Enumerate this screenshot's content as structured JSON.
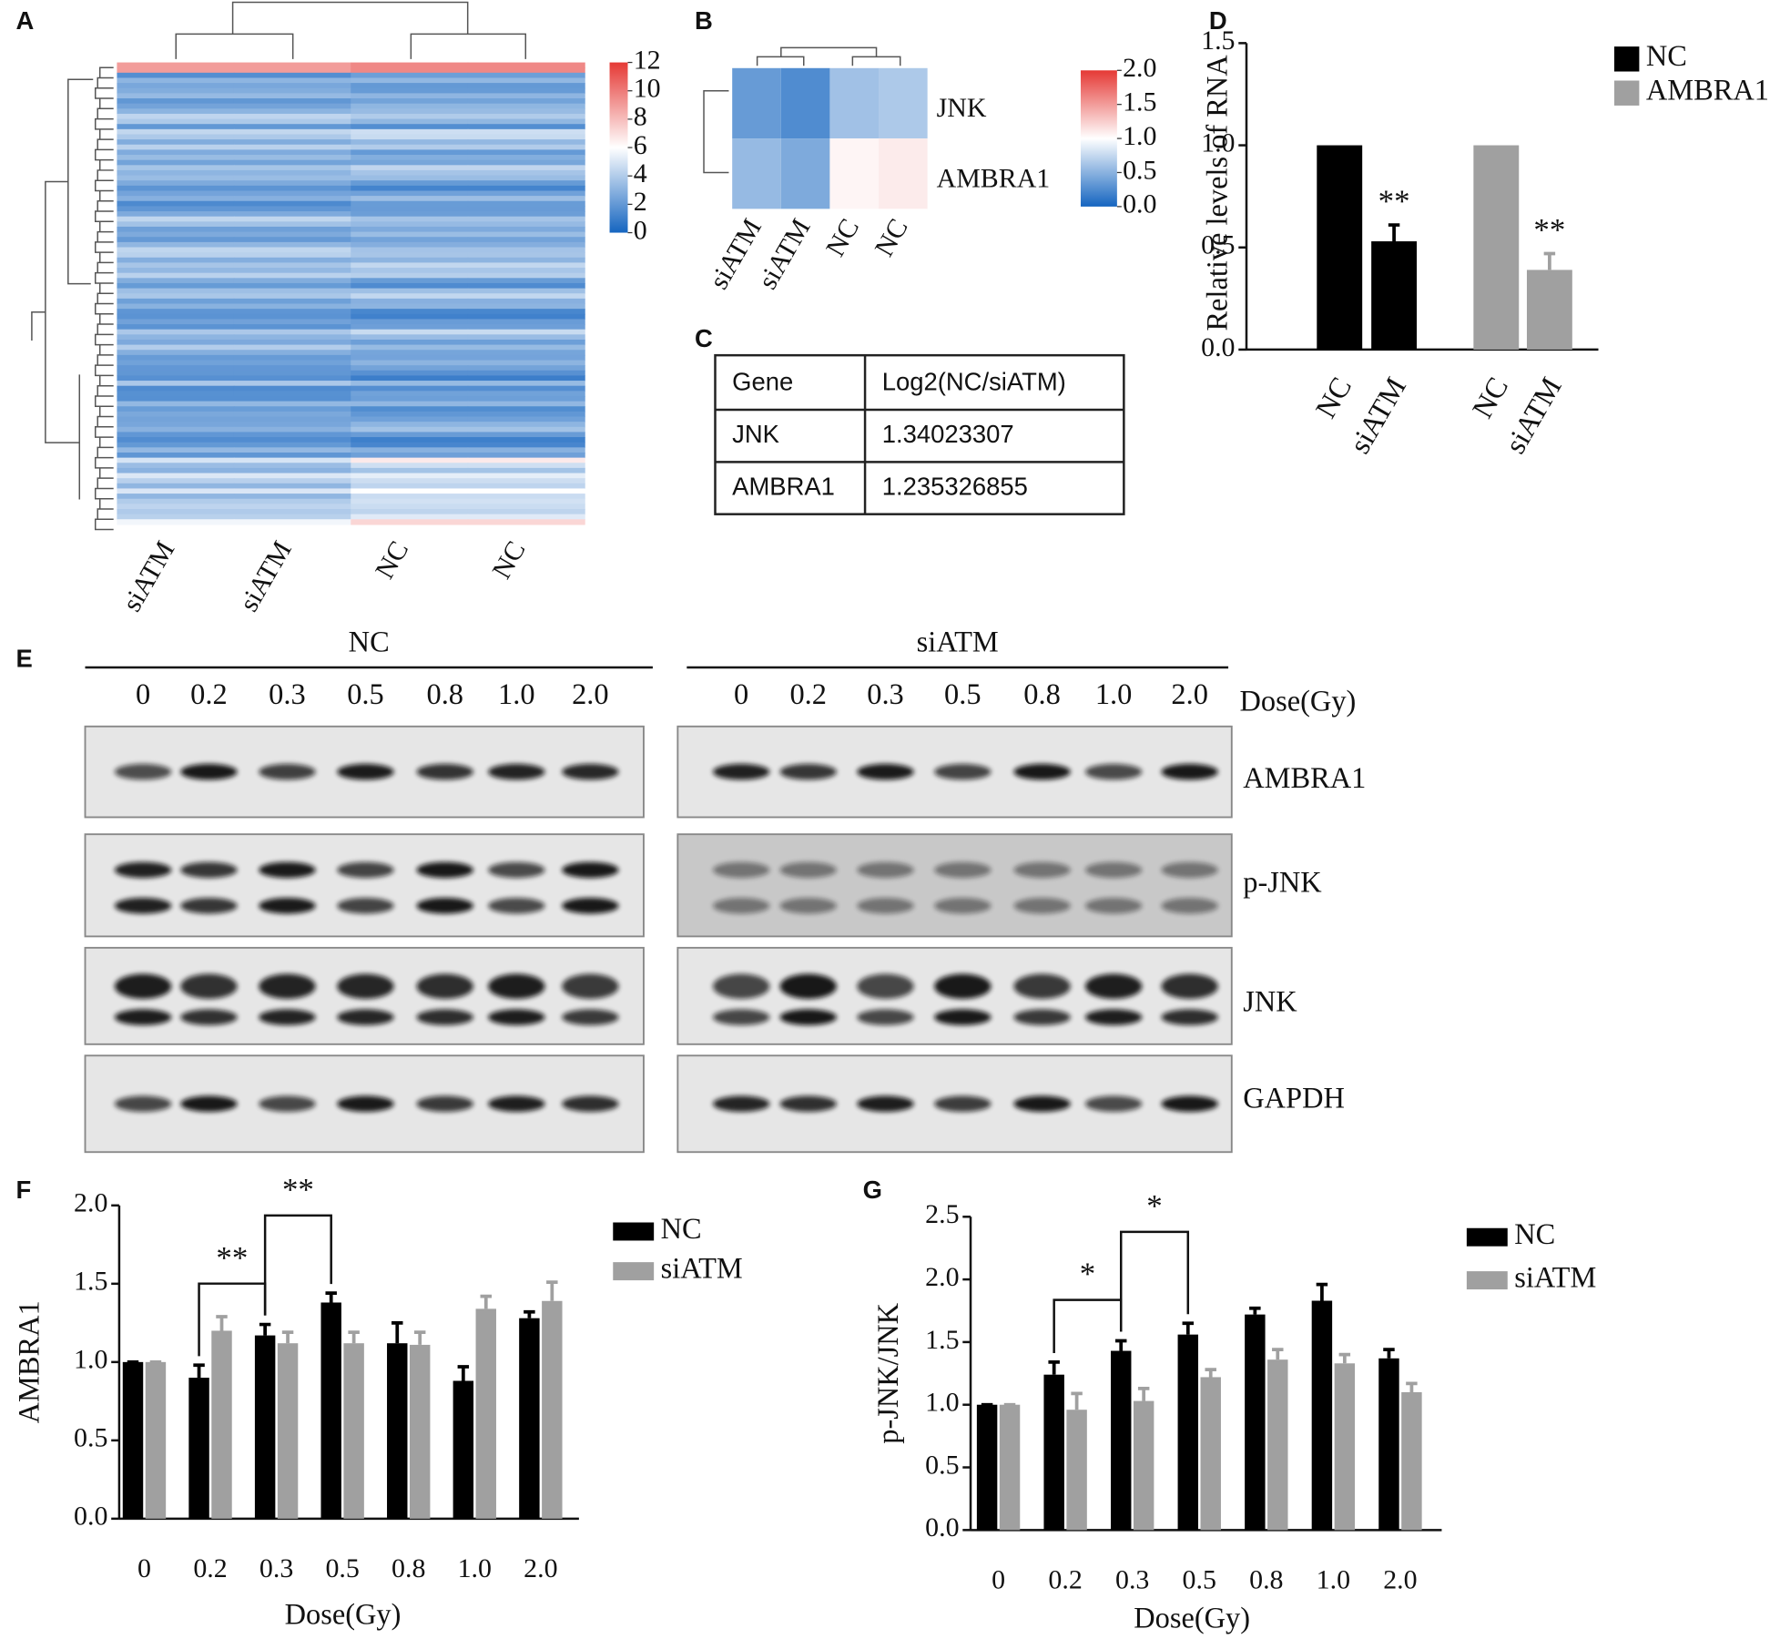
{
  "panel_labels": [
    "A",
    "B",
    "C",
    "D",
    "E",
    "F",
    "G"
  ],
  "chart_data": [
    {
      "type": "heatmap",
      "column_labels": [
        "siATM",
        "siATM",
        "NC",
        "NC"
      ],
      "clim": [
        0,
        12
      ],
      "cticks": [
        0,
        2,
        4,
        6,
        8,
        10,
        12
      ]
    },
    {
      "type": "heatmap",
      "columns": [
        "siATM",
        "siATM",
        "NC",
        "NC"
      ],
      "rows": [
        "JNK",
        "AMBRA1"
      ],
      "values": [
        [
          0.35,
          0.25,
          0.6,
          0.65
        ],
        [
          0.55,
          0.45,
          1.05,
          1.1
        ]
      ],
      "clim": [
        0,
        2
      ],
      "cticks": [
        {
          "value": 0,
          "label": "0.0"
        },
        {
          "value": 0.5,
          "label": "0.5"
        },
        {
          "value": 1,
          "label": "1.0"
        },
        {
          "value": 1.5,
          "label": "1.5"
        },
        {
          "value": 2,
          "label": "2.0"
        }
      ]
    },
    {
      "type": "bar",
      "y_label": "Relative levels of RNA",
      "categories": [
        "NC",
        "siATM",
        "NC",
        "siATM"
      ],
      "series": [
        {
          "name": "NC",
          "color": "#000000",
          "values": [
            1.0,
            0.53,
            null,
            null
          ],
          "errors": [
            null,
            0.08,
            null,
            null
          ],
          "significance": [
            null,
            "**",
            null,
            null
          ]
        },
        {
          "name": "AMBRA1",
          "color": "#a0a0a0",
          "values": [
            null,
            null,
            1.0,
            0.39
          ],
          "errors": [
            null,
            null,
            null,
            0.08
          ],
          "significance": [
            null,
            null,
            null,
            "**"
          ]
        }
      ],
      "ylim": [
        0,
        1.5
      ],
      "yticks": [
        {
          "value": 0,
          "label": "0.0"
        },
        {
          "value": 0.5,
          "label": "0.5"
        },
        {
          "value": 1,
          "label": "1.0"
        },
        {
          "value": 1.5,
          "label": "1.5"
        }
      ]
    },
    {
      "type": "bar",
      "y_label": "AMBRA1",
      "x_label": "Dose(Gy)",
      "categories": [
        "0",
        "0.2",
        "0.3",
        "0.5",
        "0.8",
        "1.0",
        "2.0"
      ],
      "series": [
        {
          "name": "NC",
          "color": "#000000",
          "values": [
            1.0,
            0.9,
            1.17,
            1.38,
            1.12,
            0.88,
            1.28
          ],
          "errors": [
            0,
            0.08,
            0.07,
            0.06,
            0.13,
            0.09,
            0.04
          ]
        },
        {
          "name": "siATM",
          "color": "#a0a0a0",
          "values": [
            1.0,
            1.2,
            1.12,
            1.12,
            1.11,
            1.34,
            1.39
          ],
          "errors": [
            0,
            0.09,
            0.07,
            0.07,
            0.08,
            0.08,
            0.12
          ]
        }
      ],
      "brackets": [
        {
          "label": "**",
          "between": [
            1,
            2
          ]
        },
        {
          "label": "**",
          "between": [
            2,
            3
          ]
        }
      ],
      "ylim": [
        0,
        2
      ],
      "yticks": [
        {
          "value": 0,
          "label": "0.0"
        },
        {
          "value": 0.5,
          "label": "0.5"
        },
        {
          "value": 1,
          "label": "1.0"
        },
        {
          "value": 1.5,
          "label": "1.5"
        },
        {
          "value": 2,
          "label": "2.0"
        }
      ]
    },
    {
      "type": "bar",
      "y_label": "p-JNK/JNK",
      "x_label": "Dose(Gy)",
      "categories": [
        "0",
        "0.2",
        "0.3",
        "0.5",
        "0.8",
        "1.0",
        "2.0"
      ],
      "series": [
        {
          "name": "NC",
          "color": "#000000",
          "values": [
            1.0,
            1.24,
            1.43,
            1.56,
            1.72,
            1.83,
            1.37
          ],
          "errors": [
            0,
            0.1,
            0.08,
            0.09,
            0.05,
            0.13,
            0.07
          ]
        },
        {
          "name": "siATM",
          "color": "#a0a0a0",
          "values": [
            1.0,
            0.96,
            1.03,
            1.22,
            1.36,
            1.33,
            1.1
          ],
          "errors": [
            0,
            0.13,
            0.1,
            0.06,
            0.08,
            0.07,
            0.07
          ]
        }
      ],
      "brackets": [
        {
          "label": "*",
          "between": [
            1,
            2
          ]
        },
        {
          "label": "*",
          "between": [
            2,
            3
          ]
        }
      ],
      "ylim": [
        0,
        2.5
      ],
      "yticks": [
        {
          "value": 0,
          "label": "0.0"
        },
        {
          "value": 0.5,
          "label": "0.5"
        },
        {
          "value": 1,
          "label": "1.0"
        },
        {
          "value": 1.5,
          "label": "1.5"
        },
        {
          "value": 2,
          "label": "2.0"
        },
        {
          "value": 2.5,
          "label": "2.5"
        }
      ]
    }
  ],
  "table": {
    "header": [
      "Gene",
      "Log2(NC/siATM)"
    ],
    "rows": [
      [
        "JNK",
        "1.34023307"
      ],
      [
        "AMBRA1",
        "1.235326855"
      ]
    ]
  },
  "blot": {
    "groups": [
      "NC",
      "siATM"
    ],
    "doses": [
      "0",
      "0.2",
      "0.3",
      "0.5",
      "0.8",
      "1.0",
      "2.0"
    ],
    "dose_label": "Dose(Gy)",
    "proteins": [
      "AMBRA1",
      "p-JNK",
      "JNK",
      "GAPDH"
    ]
  }
}
